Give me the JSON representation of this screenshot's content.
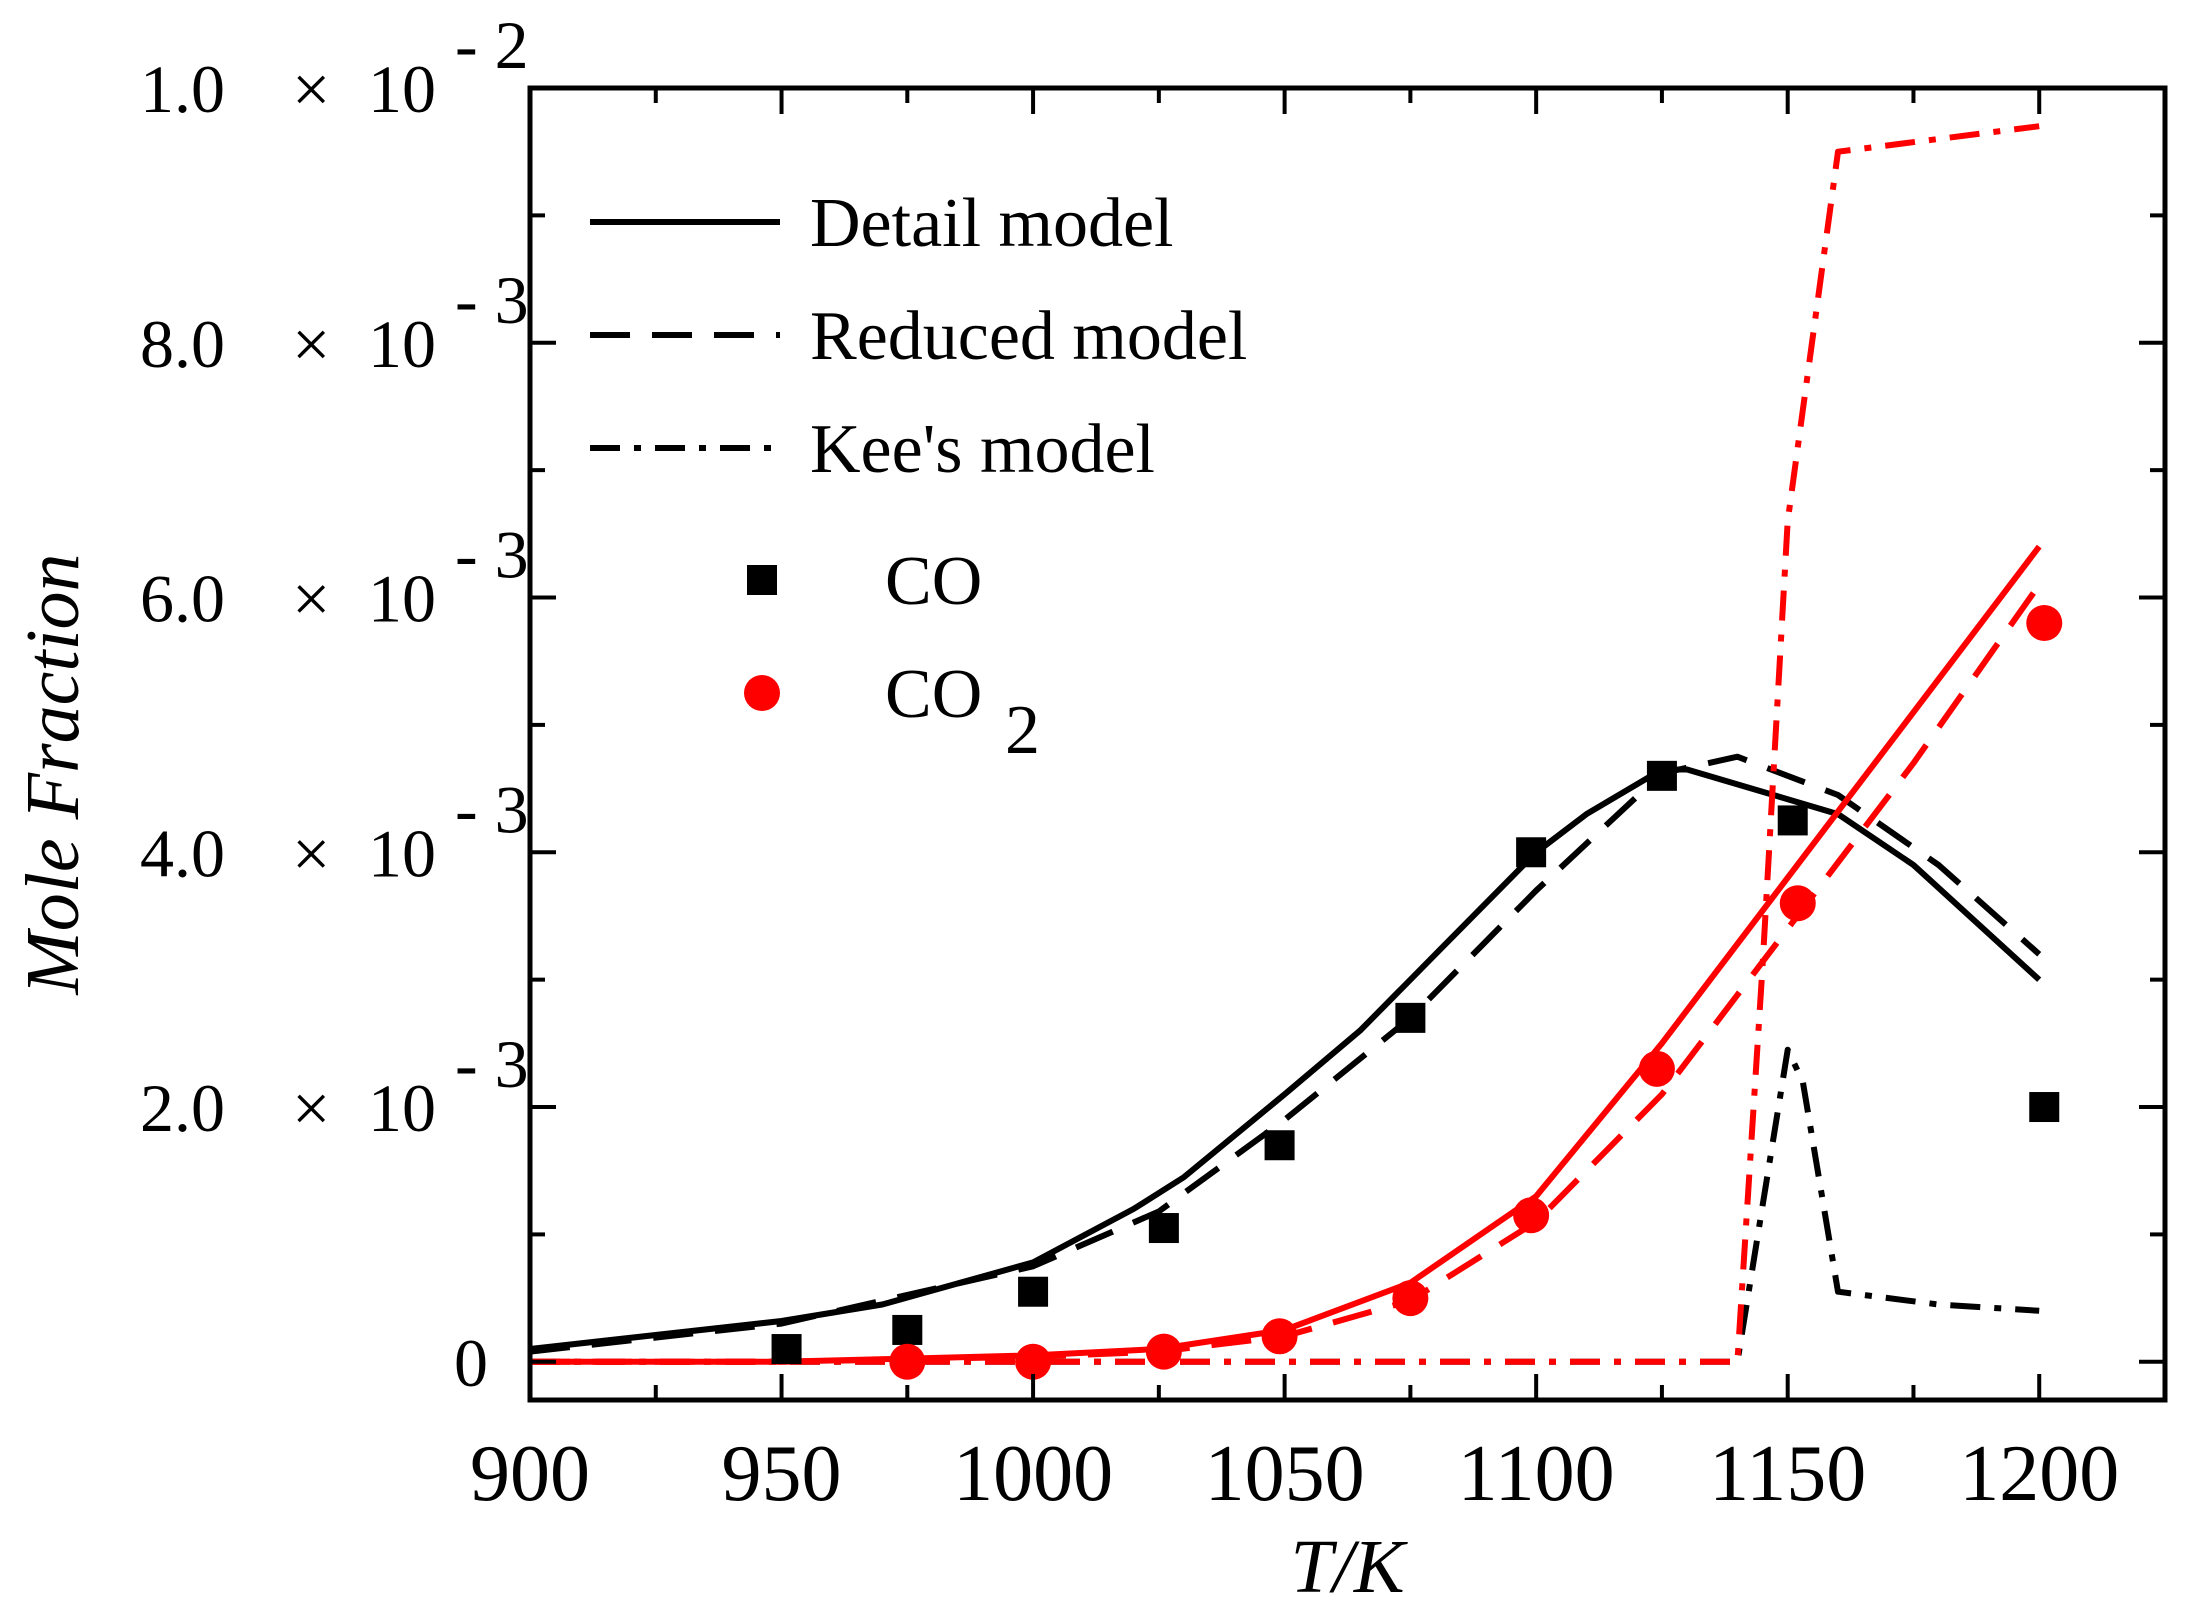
{
  "chart_data": {
    "type": "line",
    "xlabel": "T/K",
    "ylabel": "Mole Fraction",
    "xlim": [
      900,
      1225
    ],
    "ylim": [
      -0.0003,
      0.01
    ],
    "x_ticks": [
      900,
      950,
      1000,
      1050,
      1100,
      1150,
      1200
    ],
    "x_tick_labels": [
      "900",
      "950",
      "1000",
      "1050",
      "1100",
      "1150",
      "1200"
    ],
    "y_ticks": [
      0,
      0.002,
      0.004,
      0.006,
      0.008,
      0.01
    ],
    "y_tick_labels": [
      {
        "mantissa": "0",
        "times": "",
        "base": "",
        "exp": ""
      },
      {
        "mantissa": "2.0",
        "times": "×",
        "base": "10",
        "exp": "- 3"
      },
      {
        "mantissa": "4.0",
        "times": "×",
        "base": "10",
        "exp": "- 3"
      },
      {
        "mantissa": "6.0",
        "times": "×",
        "base": "10",
        "exp": "- 3"
      },
      {
        "mantissa": "8.0",
        "times": "×",
        "base": "10",
        "exp": "- 3"
      },
      {
        "mantissa": "1.0",
        "times": "×",
        "base": "10",
        "exp": "- 2"
      }
    ],
    "legend": {
      "placement": "top-left",
      "lines": [
        {
          "label": "Detail model",
          "style": "solid"
        },
        {
          "label": "Reduced model",
          "style": "dashed"
        },
        {
          "label": "Kee's model",
          "style": "dashdot"
        }
      ],
      "markers": [
        {
          "label": "CO",
          "label_sub": "",
          "marker": "square",
          "color": "#000000"
        },
        {
          "label": "CO",
          "label_sub": "2",
          "marker": "circle",
          "color": "#ff0000"
        }
      ]
    },
    "series": [
      {
        "species": "CO",
        "model": "Detail model",
        "style": "solid",
        "color": "#000000",
        "x": [
          900,
          950,
          970,
          1000,
          1020,
          1030,
          1050,
          1065,
          1080,
          1100,
          1110,
          1125,
          1130,
          1160,
          1175,
          1200
        ],
        "y": [
          0.0001,
          0.00032,
          0.00045,
          0.00078,
          0.0012,
          0.00145,
          0.0021,
          0.0026,
          0.0032,
          0.004,
          0.0043,
          0.00465,
          0.00465,
          0.0043,
          0.0039,
          0.003
        ]
      },
      {
        "species": "CO",
        "model": "Reduced model",
        "style": "dashed",
        "color": "#000000",
        "x": [
          900,
          950,
          1000,
          1025,
          1050,
          1075,
          1100,
          1125,
          1140,
          1160,
          1180,
          1200
        ],
        "y": [
          8e-05,
          0.0003,
          0.00075,
          0.00118,
          0.0019,
          0.0027,
          0.0037,
          0.00462,
          0.00475,
          0.00445,
          0.0039,
          0.0032
        ]
      },
      {
        "species": "CO",
        "model": "Kee's model",
        "style": "dashdot",
        "color": "#000000",
        "x": [
          900,
          1000,
          1100,
          1140,
          1150,
          1153,
          1160,
          1180,
          1200
        ],
        "y": [
          0.0,
          0.0,
          0.0,
          0.0,
          0.00245,
          0.0022,
          0.00055,
          0.00045,
          0.0004
        ]
      },
      {
        "species": "CO2",
        "model": "Detail model",
        "style": "solid",
        "color": "#ff0000",
        "x": [
          900,
          950,
          1000,
          1025,
          1050,
          1075,
          1100,
          1125,
          1150,
          1175,
          1200
        ],
        "y": [
          0.0,
          0.0,
          5e-05,
          0.0001,
          0.00025,
          0.00062,
          0.0013,
          0.0025,
          0.0038,
          0.0051,
          0.0064
        ]
      },
      {
        "species": "CO2",
        "model": "Reduced model",
        "style": "dashed",
        "color": "#ff0000",
        "x": [
          900,
          950,
          1000,
          1025,
          1050,
          1075,
          1100,
          1125,
          1150,
          1175,
          1200
        ],
        "y": [
          0.0,
          0.0,
          4e-05,
          8e-05,
          0.0002,
          0.00048,
          0.0011,
          0.0021,
          0.0034,
          0.0047,
          0.0061
        ]
      },
      {
        "species": "CO2",
        "model": "Kee's model",
        "style": "dashdot",
        "color": "#ff0000",
        "x": [
          900,
          1000,
          1100,
          1140,
          1145,
          1150,
          1160,
          1200
        ],
        "y": [
          0.0,
          0.0,
          0.0,
          0.0,
          0.0031,
          0.0066,
          0.0095,
          0.0097
        ]
      }
    ],
    "experimental": [
      {
        "species": "CO",
        "marker": "square",
        "color": "#000000",
        "x": [
          951,
          975,
          1000,
          1026,
          1049,
          1075,
          1099,
          1125,
          1151,
          1201
        ],
        "y": [
          0.0001,
          0.00025,
          0.00055,
          0.00105,
          0.0017,
          0.0027,
          0.004,
          0.0046,
          0.00425,
          0.002
        ]
      },
      {
        "species": "CO2",
        "marker": "circle",
        "color": "#ff0000",
        "x": [
          975,
          1000,
          1026,
          1049,
          1075,
          1099,
          1124,
          1152,
          1201
        ],
        "y": [
          0.0,
          0.0,
          8e-05,
          0.0002,
          0.0005,
          0.00115,
          0.0023,
          0.0036,
          0.0058
        ]
      }
    ]
  }
}
